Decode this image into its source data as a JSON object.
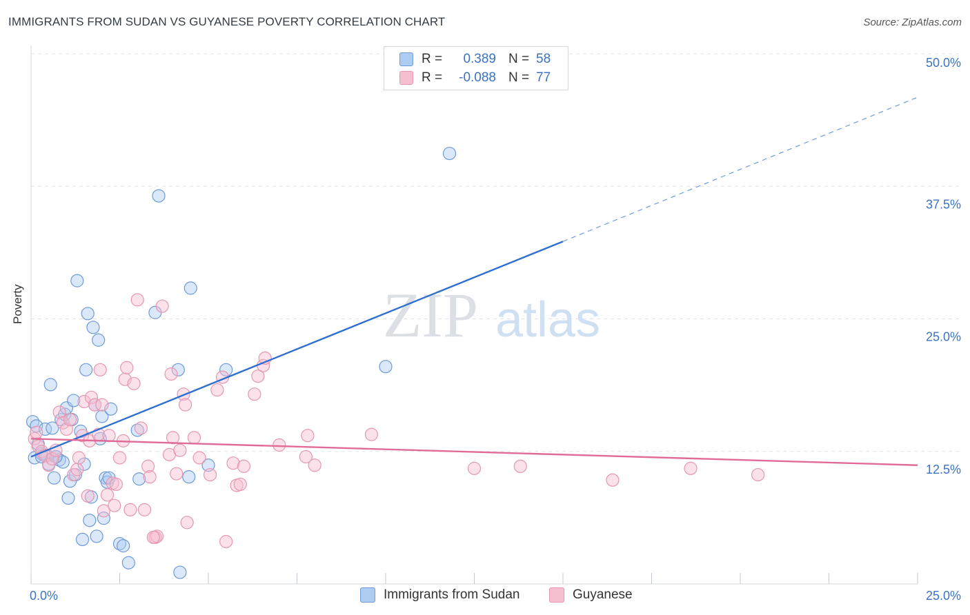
{
  "header": {
    "title": "IMMIGRANTS FROM SUDAN VS GUYANESE POVERTY CORRELATION CHART",
    "source": "Source: ZipAtlas.com"
  },
  "watermark": {
    "zip": "ZIP",
    "atlas": "atlas"
  },
  "legend": {
    "rows": [
      {
        "r_label": "R =",
        "r_value": "0.389",
        "n_label": "N =",
        "n_value": "58"
      },
      {
        "r_label": "R =",
        "r_value": "-0.088",
        "n_label": "N =",
        "n_value": "77"
      }
    ],
    "bottom": [
      "Immigrants from Sudan",
      "Guyanese"
    ]
  },
  "colors": {
    "blue_fill": "#aecbf2",
    "blue_stroke": "#6e9ad6",
    "blue_line": "#2f6fd1",
    "pink_fill": "#f6bfd0",
    "pink_stroke": "#e596b0",
    "pink_line": "#e06a98",
    "tick_label": "#3b72c4",
    "grid": "#dfe3e8"
  },
  "chart_data": {
    "type": "scatter",
    "title": "IMMIGRANTS FROM SUDAN VS GUYANESE POVERTY CORRELATION CHART",
    "xlabel": "",
    "ylabel": "Poverty",
    "xlim": [
      0,
      25
    ],
    "ylim": [
      0,
      50
    ],
    "x_tick_labels": [
      "0.0%",
      "25.0%"
    ],
    "y_ticks": [
      12.5,
      25.0,
      37.5,
      50.0
    ],
    "y_tick_labels": [
      "12.5%",
      "25.0%",
      "37.5%",
      "50.0%"
    ],
    "grid": true,
    "series": [
      {
        "name": "Immigrants from Sudan",
        "color": "blue",
        "points": [
          [
            0.05,
            15.3
          ],
          [
            0.1,
            11.9
          ],
          [
            0.15,
            14.9
          ],
          [
            0.2,
            13.2
          ],
          [
            0.3,
            12.3
          ],
          [
            0.4,
            14.6
          ],
          [
            0.45,
            12.1
          ],
          [
            0.5,
            11.3
          ],
          [
            0.55,
            18.8
          ],
          [
            0.6,
            14.7
          ],
          [
            0.65,
            10.0
          ],
          [
            0.7,
            12.0
          ],
          [
            0.8,
            11.7
          ],
          [
            0.85,
            15.5
          ],
          [
            0.9,
            11.5
          ],
          [
            0.95,
            16.0
          ],
          [
            1.0,
            16.6
          ],
          [
            1.05,
            8.1
          ],
          [
            1.1,
            9.7
          ],
          [
            1.15,
            15.5
          ],
          [
            1.2,
            17.3
          ],
          [
            1.3,
            28.6
          ],
          [
            1.25,
            10.3
          ],
          [
            1.4,
            14.4
          ],
          [
            1.45,
            4.2
          ],
          [
            1.5,
            11.3
          ],
          [
            1.55,
            20.2
          ],
          [
            1.6,
            25.5
          ],
          [
            1.65,
            6.0
          ],
          [
            1.7,
            8.2
          ],
          [
            1.75,
            24.2
          ],
          [
            1.8,
            16.9
          ],
          [
            1.85,
            4.5
          ],
          [
            1.9,
            23.0
          ],
          [
            1.95,
            13.7
          ],
          [
            2.0,
            15.8
          ],
          [
            2.05,
            6.2
          ],
          [
            2.1,
            10.0
          ],
          [
            2.15,
            9.6
          ],
          [
            2.2,
            10.0
          ],
          [
            2.25,
            16.5
          ],
          [
            2.5,
            3.8
          ],
          [
            2.6,
            3.6
          ],
          [
            2.75,
            2.0
          ],
          [
            3.0,
            14.5
          ],
          [
            3.05,
            9.9
          ],
          [
            3.5,
            25.6
          ],
          [
            3.6,
            36.6
          ],
          [
            4.2,
            1.1
          ],
          [
            4.15,
            20.2
          ],
          [
            4.45,
            10.1
          ],
          [
            4.5,
            27.9
          ],
          [
            5.0,
            11.2
          ],
          [
            5.5,
            20.2
          ],
          [
            10.0,
            20.5
          ],
          [
            11.8,
            40.6
          ],
          [
            0.3,
            12.0
          ],
          [
            0.7,
            12.0
          ]
        ],
        "trend": {
          "x": [
            0.0,
            15.0
          ],
          "y": [
            12.0,
            32.3
          ],
          "dashed_to": [
            25.0,
            45.9
          ]
        }
      },
      {
        "name": "Guyanese",
        "color": "pink",
        "points": [
          [
            0.1,
            13.7
          ],
          [
            0.15,
            14.3
          ],
          [
            0.2,
            13.0
          ],
          [
            0.3,
            12.5
          ],
          [
            0.4,
            12.1
          ],
          [
            0.5,
            11.2
          ],
          [
            0.6,
            11.8
          ],
          [
            0.7,
            12.6
          ],
          [
            0.8,
            16.2
          ],
          [
            0.9,
            15.2
          ],
          [
            1.0,
            14.6
          ],
          [
            1.2,
            10.3
          ],
          [
            1.3,
            10.8
          ],
          [
            1.35,
            11.9
          ],
          [
            1.45,
            14.0
          ],
          [
            1.5,
            17.2
          ],
          [
            1.6,
            8.3
          ],
          [
            1.65,
            13.5
          ],
          [
            1.7,
            17.6
          ],
          [
            1.8,
            16.9
          ],
          [
            1.9,
            14.1
          ],
          [
            1.95,
            20.2
          ],
          [
            2.0,
            16.9
          ],
          [
            2.05,
            6.9
          ],
          [
            2.15,
            8.4
          ],
          [
            2.2,
            14.0
          ],
          [
            2.3,
            9.5
          ],
          [
            2.35,
            7.4
          ],
          [
            2.5,
            11.9
          ],
          [
            2.6,
            13.5
          ],
          [
            2.65,
            19.3
          ],
          [
            2.7,
            20.4
          ],
          [
            2.8,
            7.0
          ],
          [
            2.9,
            18.9
          ],
          [
            3.0,
            26.8
          ],
          [
            3.1,
            14.7
          ],
          [
            3.2,
            7.0
          ],
          [
            3.3,
            11.1
          ],
          [
            3.35,
            10.1
          ],
          [
            3.5,
            4.4
          ],
          [
            3.55,
            4.5
          ],
          [
            3.7,
            26.2
          ],
          [
            3.9,
            12.2
          ],
          [
            3.95,
            19.8
          ],
          [
            4.0,
            13.8
          ],
          [
            4.1,
            10.4
          ],
          [
            4.2,
            12.6
          ],
          [
            4.3,
            17.9
          ],
          [
            4.35,
            16.9
          ],
          [
            4.4,
            5.8
          ],
          [
            4.6,
            13.8
          ],
          [
            4.75,
            11.9
          ],
          [
            5.05,
            10.3
          ],
          [
            5.25,
            18.3
          ],
          [
            5.4,
            19.5
          ],
          [
            5.5,
            4.0
          ],
          [
            5.7,
            11.4
          ],
          [
            5.8,
            9.3
          ],
          [
            5.9,
            9.4
          ],
          [
            6.0,
            11.1
          ],
          [
            6.3,
            17.9
          ],
          [
            6.4,
            19.6
          ],
          [
            6.55,
            20.6
          ],
          [
            6.6,
            21.3
          ],
          [
            7.0,
            13.1
          ],
          [
            7.8,
            14.0
          ],
          [
            7.75,
            12.0
          ],
          [
            8.0,
            11.2
          ],
          [
            9.6,
            14.1
          ],
          [
            12.5,
            10.9
          ],
          [
            13.8,
            11.1
          ],
          [
            16.4,
            9.8
          ],
          [
            18.6,
            10.9
          ],
          [
            20.5,
            10.3
          ],
          [
            3.45,
            4.4
          ],
          [
            1.1,
            15.5
          ],
          [
            2.4,
            9.4
          ]
        ],
        "trend": {
          "x": [
            0.0,
            25.0
          ],
          "y": [
            13.7,
            11.2
          ]
        }
      }
    ]
  }
}
